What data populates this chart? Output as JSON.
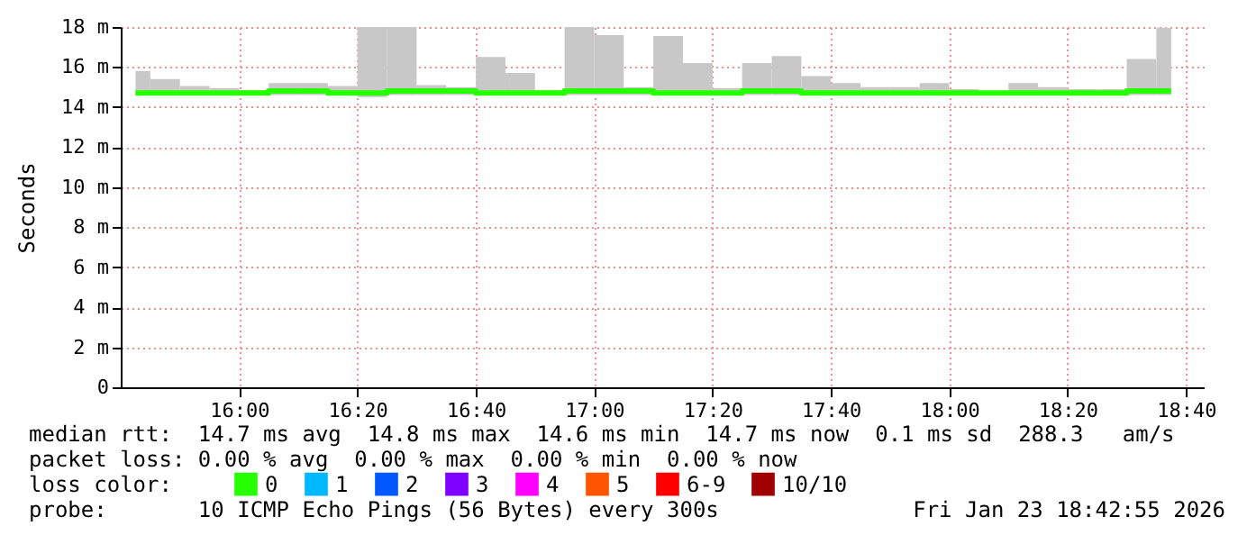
{
  "chart_data": {
    "type": "step",
    "ylabel": "Seconds",
    "legend_title": "loss color:",
    "legend": "bottom left",
    "grid": true,
    "x": [
      "2026-01-23T15:42:30",
      "2026-01-23T15:47:30",
      "2026-01-23T15:52:30",
      "2026-01-23T15:57:30",
      "2026-01-23T16:02:30",
      "2026-01-23T16:07:30",
      "2026-01-23T16:12:30",
      "2026-01-23T16:17:30",
      "2026-01-23T16:22:30",
      "2026-01-23T16:27:30",
      "2026-01-23T16:32:30",
      "2026-01-23T16:37:30",
      "2026-01-23T16:42:30",
      "2026-01-23T16:47:30",
      "2026-01-23T16:52:30",
      "2026-01-23T16:57:30",
      "2026-01-23T17:02:30",
      "2026-01-23T17:07:30",
      "2026-01-23T17:12:30",
      "2026-01-23T17:17:30",
      "2026-01-23T17:22:30",
      "2026-01-23T17:27:30",
      "2026-01-23T17:32:30",
      "2026-01-23T17:37:30",
      "2026-01-23T17:42:30",
      "2026-01-23T17:47:30",
      "2026-01-23T17:52:30",
      "2026-01-23T17:57:30",
      "2026-01-23T18:02:30",
      "2026-01-23T18:07:30",
      "2026-01-23T18:12:30",
      "2026-01-23T18:17:30",
      "2026-01-23T18:22:30",
      "2026-01-23T18:27:30",
      "2026-01-23T18:32:30",
      "2026-01-23T18:37:30"
    ],
    "xlim": [
      "2026-01-23T15:40",
      "2026-01-23T18:43"
    ],
    "xticks": [
      {
        "value": "2026-01-23T16:00",
        "label": "16:00"
      },
      {
        "value": "2026-01-23T16:20",
        "label": "16:20"
      },
      {
        "value": "2026-01-23T16:40",
        "label": "16:40"
      },
      {
        "value": "2026-01-23T17:00",
        "label": "17:00"
      },
      {
        "value": "2026-01-23T17:20",
        "label": "17:20"
      },
      {
        "value": "2026-01-23T17:40",
        "label": "17:40"
      },
      {
        "value": "2026-01-23T18:00",
        "label": "18:00"
      },
      {
        "value": "2026-01-23T18:20",
        "label": "18:20"
      },
      {
        "value": "2026-01-23T18:40",
        "label": "18:40"
      }
    ],
    "ylim": [
      0,
      18
    ],
    "yticks": [
      0,
      {
        "value": 2,
        "label": "2 m"
      },
      {
        "value": 4,
        "label": "4 m"
      },
      {
        "value": 6,
        "label": "6 m"
      },
      {
        "value": 8,
        "label": "8 m"
      },
      {
        "value": 10,
        "label": "10 m"
      },
      {
        "value": 12,
        "label": "12 m"
      },
      {
        "value": 14,
        "label": "14 m"
      },
      {
        "value": 16,
        "label": "16 m"
      },
      {
        "value": 18,
        "label": "18 m"
      }
    ],
    "series": [
      {
        "name": "0",
        "color": "#26ff00",
        "values": [
          14.7,
          14.7,
          14.7,
          14.7,
          14.7,
          14.8,
          14.8,
          14.7,
          14.7,
          14.8,
          14.8,
          14.8,
          14.7,
          14.7,
          14.7,
          14.8,
          14.8,
          14.8,
          14.7,
          14.7,
          14.7,
          14.8,
          14.8,
          14.7,
          14.7,
          14.7,
          14.7,
          14.7,
          14.7,
          14.7,
          14.7,
          14.7,
          14.7,
          14.7,
          14.8,
          14.8
        ],
        "lower": [
          14.6,
          14.6,
          14.6,
          14.6,
          14.6,
          14.6,
          14.6,
          14.6,
          14.5,
          14.6,
          14.6,
          14.6,
          14.6,
          14.6,
          14.6,
          14.6,
          14.6,
          14.6,
          14.6,
          14.6,
          14.6,
          14.6,
          14.6,
          14.6,
          14.6,
          14.6,
          14.6,
          14.6,
          14.6,
          14.6,
          14.6,
          14.6,
          14.6,
          14.6,
          14.6,
          14.6
        ],
        "upper": [
          15.8,
          15.4,
          15.05,
          14.95,
          14.85,
          15.2,
          15.2,
          15.05,
          18,
          18,
          15.1,
          15,
          16.5,
          15.7,
          14.85,
          18,
          17.6,
          15,
          17.55,
          16.2,
          14.95,
          16.2,
          16.55,
          15.55,
          15.2,
          15,
          15,
          15.2,
          14.9,
          14.8,
          15.2,
          15,
          14.9,
          14.9,
          16.4,
          17.95
        ]
      },
      {
        "name": "1",
        "color": "#00b8ff",
        "values": [
          null,
          null,
          null,
          null,
          null,
          null,
          null,
          null,
          null,
          null,
          null,
          null,
          null,
          null,
          null,
          null,
          null,
          null,
          null,
          null,
          null,
          null,
          null,
          null,
          null,
          null,
          null,
          null,
          null,
          null,
          null,
          null,
          null,
          null,
          null,
          null
        ]
      },
      {
        "name": "2",
        "color": "#0059ff",
        "values": [
          null,
          null,
          null,
          null,
          null,
          null,
          null,
          null,
          null,
          null,
          null,
          null,
          null,
          null,
          null,
          null,
          null,
          null,
          null,
          null,
          null,
          null,
          null,
          null,
          null,
          null,
          null,
          null,
          null,
          null,
          null,
          null,
          null,
          null,
          null,
          null
        ]
      },
      {
        "name": "3",
        "color": "#7e00ff",
        "values": [
          null,
          null,
          null,
          null,
          null,
          null,
          null,
          null,
          null,
          null,
          null,
          null,
          null,
          null,
          null,
          null,
          null,
          null,
          null,
          null,
          null,
          null,
          null,
          null,
          null,
          null,
          null,
          null,
          null,
          null,
          null,
          null,
          null,
          null,
          null,
          null
        ]
      },
      {
        "name": "4",
        "color": "#ff00ff",
        "values": [
          null,
          null,
          null,
          null,
          null,
          null,
          null,
          null,
          null,
          null,
          null,
          null,
          null,
          null,
          null,
          null,
          null,
          null,
          null,
          null,
          null,
          null,
          null,
          null,
          null,
          null,
          null,
          null,
          null,
          null,
          null,
          null,
          null,
          null,
          null,
          null
        ]
      },
      {
        "name": "5",
        "color": "#ff5500",
        "values": [
          null,
          null,
          null,
          null,
          null,
          null,
          null,
          null,
          null,
          null,
          null,
          null,
          null,
          null,
          null,
          null,
          null,
          null,
          null,
          null,
          null,
          null,
          null,
          null,
          null,
          null,
          null,
          null,
          null,
          null,
          null,
          null,
          null,
          null,
          null,
          null
        ]
      },
      {
        "name": "6-9",
        "color": "#ff0000",
        "values": [
          null,
          null,
          null,
          null,
          null,
          null,
          null,
          null,
          null,
          null,
          null,
          null,
          null,
          null,
          null,
          null,
          null,
          null,
          null,
          null,
          null,
          null,
          null,
          null,
          null,
          null,
          null,
          null,
          null,
          null,
          null,
          null,
          null,
          null,
          null,
          null
        ]
      },
      {
        "name": "10/10",
        "color": "#a10000",
        "values": [
          null,
          null,
          null,
          null,
          null,
          null,
          null,
          null,
          null,
          null,
          null,
          null,
          null,
          null,
          null,
          null,
          null,
          null,
          null,
          null,
          null,
          null,
          null,
          null,
          null,
          null,
          null,
          null,
          null,
          null,
          null,
          null,
          null,
          null,
          null,
          null
        ]
      }
    ],
    "annotations": [
      "median rtt:  14.7 ms avg  14.8 ms max  14.6 ms min  14.7 ms now  0.1 ms sd  288.3   am/s",
      "packet loss: 0.00 % avg  0.00 % max  0.00 % min  0.00 % now",
      "probe:       10 ICMP Echo Pings (56 Bytes) every 300s",
      "Fri Jan 23 18:42:55 2026"
    ]
  }
}
